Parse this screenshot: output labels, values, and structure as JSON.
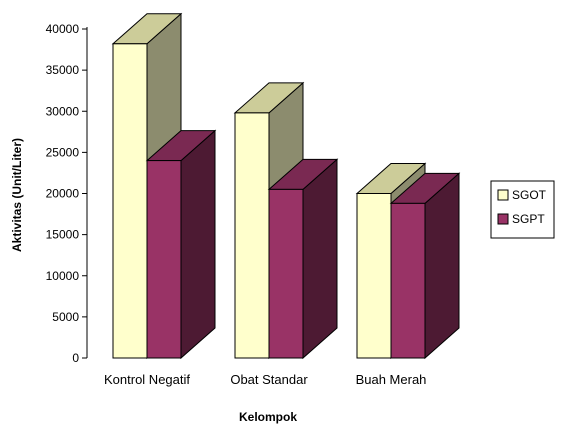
{
  "chart_data": {
    "type": "bar",
    "style": "3d-clustered",
    "categories": [
      "Kontrol Negatif",
      "Obat Standar",
      "Buah Merah"
    ],
    "series": [
      {
        "name": "SGOT",
        "values": [
          38200,
          29800,
          20000
        ],
        "color": "#FFFFCC"
      },
      {
        "name": "SGPT",
        "values": [
          24000,
          20500,
          18800
        ],
        "color": "#993366"
      }
    ],
    "xlabel": "Kelompok",
    "ylabel": "Aktivitas (Unit/Liter)",
    "ylim": [
      0,
      40000
    ],
    "yticks": [
      0,
      5000,
      10000,
      15000,
      20000,
      25000,
      30000,
      35000,
      40000
    ],
    "grid": false,
    "legend_position": "right"
  }
}
